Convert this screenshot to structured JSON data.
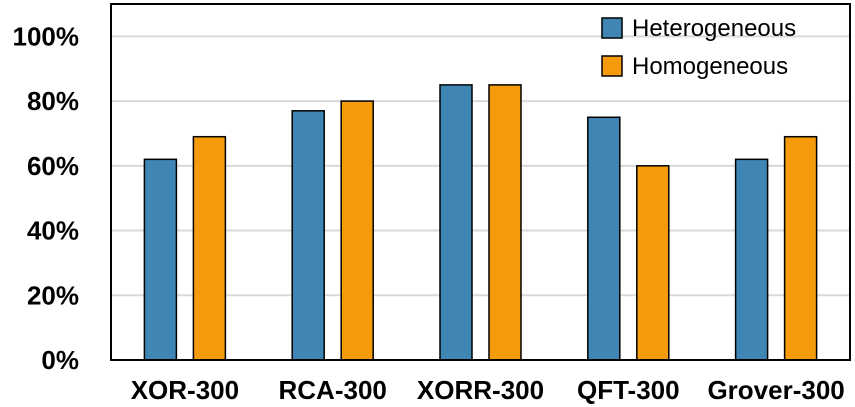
{
  "chart_data": {
    "type": "bar",
    "categories": [
      "XOR-300",
      "RCA-300",
      "XORR-300",
      "QFT-300",
      "Grover-300"
    ],
    "series": [
      {
        "name": "Heterogeneous",
        "color": "#3f86b4",
        "values": [
          62,
          77,
          85,
          75,
          62
        ]
      },
      {
        "name": "Homogeneous",
        "color": "#f59a0a",
        "values": [
          69,
          80,
          85,
          60,
          69
        ]
      }
    ],
    "ylim": [
      0,
      110
    ],
    "yticks": [
      0,
      20,
      40,
      60,
      80,
      100
    ],
    "ytick_labels": [
      "0%",
      "20%",
      "40%",
      "60%",
      "80%",
      "100%"
    ],
    "grid": true,
    "legend_position": "top-right",
    "title": "",
    "xlabel": "",
    "ylabel": ""
  }
}
